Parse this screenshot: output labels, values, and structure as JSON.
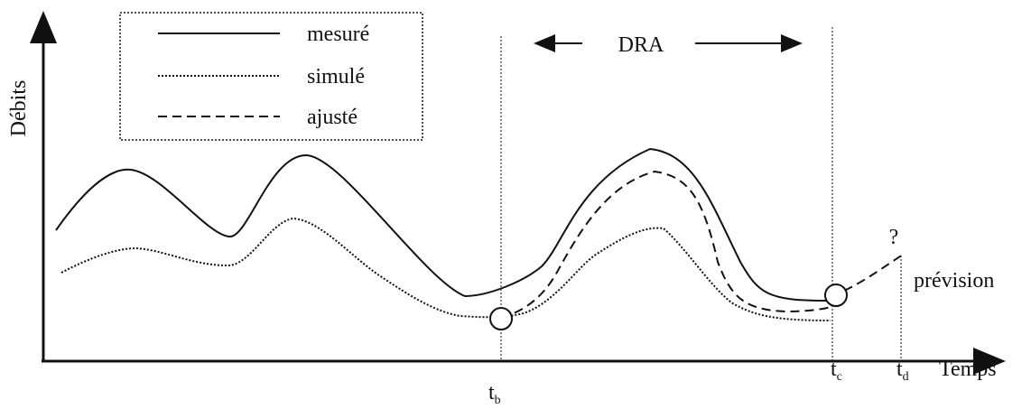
{
  "axes": {
    "y_label": "Débits",
    "x_label": "Temps"
  },
  "legend": {
    "entries": [
      "mesuré",
      "simulé",
      "ajusté"
    ]
  },
  "window_label": "DRA",
  "time_marks": [
    {
      "base": "t",
      "sub": "b"
    },
    {
      "base": "t",
      "sub": "c"
    },
    {
      "base": "t",
      "sub": "d"
    }
  ],
  "question": "?",
  "forecast_label": "prévision"
}
